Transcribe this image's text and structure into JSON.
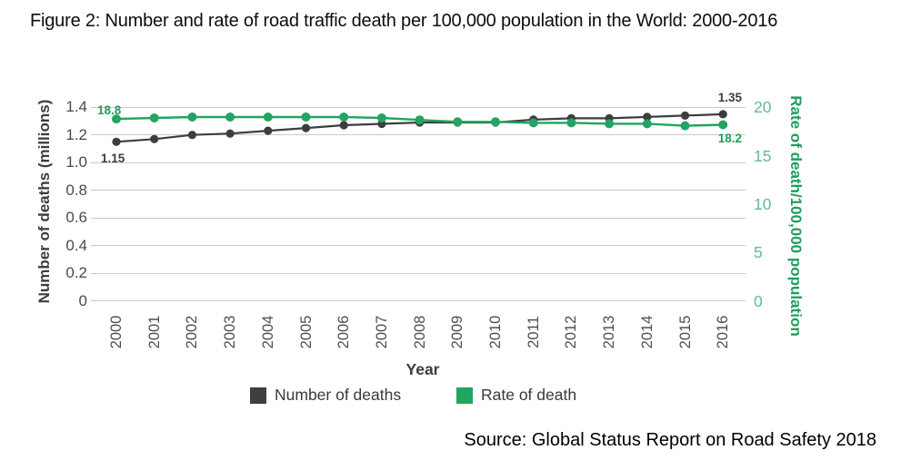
{
  "figure": {
    "title": "Figure 2: Number and rate of road traffic death per 100,000 population in the World: 2000-2016",
    "source": "Source: Global Status Report on Road Safety 2018"
  },
  "chart_data": {
    "type": "line",
    "title": "Figure 2: Number and rate of road traffic death per 100,000 population in the World: 2000-2016",
    "x": [
      2000,
      2001,
      2002,
      2003,
      2004,
      2005,
      2006,
      2007,
      2008,
      2009,
      2010,
      2011,
      2012,
      2013,
      2014,
      2015,
      2016
    ],
    "xlabel": "Year",
    "series": [
      {
        "name": "Number of deaths",
        "axis": "left",
        "color": "#3d3d3d",
        "values": [
          1.15,
          1.17,
          1.2,
          1.21,
          1.23,
          1.25,
          1.27,
          1.28,
          1.29,
          1.29,
          1.29,
          1.31,
          1.32,
          1.32,
          1.33,
          1.34,
          1.35
        ]
      },
      {
        "name": "Rate of death",
        "axis": "right",
        "color": "#22a462",
        "values": [
          18.8,
          18.9,
          19.0,
          19.0,
          19.0,
          19.0,
          19.0,
          18.9,
          18.7,
          18.5,
          18.5,
          18.4,
          18.4,
          18.3,
          18.3,
          18.1,
          18.2
        ]
      }
    ],
    "left_axis": {
      "label": "Number of deaths (millions)",
      "range": [
        0,
        1.4
      ],
      "ticks": [
        0,
        0.2,
        0.4,
        0.6,
        0.8,
        1.0,
        1.2,
        1.4
      ],
      "tick_labels": [
        "0",
        "0.2",
        "0.4",
        "0.6",
        "0.8",
        "1.0",
        "1.2",
        "1.4"
      ]
    },
    "right_axis": {
      "label": "Rate of death/100,000 population",
      "range": [
        0,
        20
      ],
      "ticks": [
        0,
        5,
        10,
        15,
        20
      ],
      "tick_labels": [
        "0",
        "5",
        "10",
        "15",
        "20"
      ]
    },
    "grid": "horizontal",
    "legend": {
      "position": "bottom",
      "entries": [
        "Number of deaths",
        "Rate of death"
      ]
    },
    "annotations": [
      {
        "text": "18.8",
        "series": "Rate of death",
        "x": 2000,
        "color": "#1f9e5c"
      },
      {
        "text": "1.15",
        "series": "Number of deaths",
        "x": 2000,
        "color": "#3d3d3d"
      },
      {
        "text": "1.35",
        "series": "Number of deaths",
        "x": 2016,
        "color": "#3d3d3d"
      },
      {
        "text": "18.2",
        "series": "Rate of death",
        "x": 2016,
        "color": "#1f9e5c"
      }
    ]
  }
}
